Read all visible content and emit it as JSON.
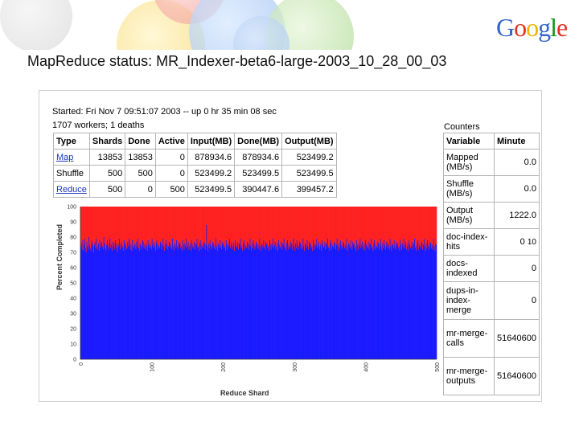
{
  "slide": {
    "title": "MapReduce status: MR_Indexer-beta6-large-2003_10_28_00_03",
    "logo": [
      "G",
      "o",
      "o",
      "g",
      "l",
      "e"
    ],
    "logo_colors": [
      "#3366cc",
      "#dd3322",
      "#f0b400",
      "#3366cc",
      "#109618",
      "#dd3322"
    ]
  },
  "status": {
    "started": "Started: Fri Nov 7 09:51:07 2003 -- up 0 hr 35 min 08 sec",
    "workers": "1707 workers; 1 deaths",
    "headers": [
      "Type",
      "Shards",
      "Done",
      "Active",
      "Input(MB)",
      "Done(MB)",
      "Output(MB)"
    ],
    "rows": [
      {
        "type": "Map",
        "shards": "13853",
        "done": "13853",
        "active": "0",
        "input": "878934.6",
        "done_mb": "878934.6",
        "output": "523499.2"
      },
      {
        "type": "Shuffle",
        "shards": "500",
        "done": "500",
        "active": "0",
        "input": "523499.2",
        "done_mb": "523499.5",
        "output": "523499.5"
      },
      {
        "type": "Reduce",
        "shards": "500",
        "done": "0",
        "active": "500",
        "input": "523499.5",
        "done_mb": "390447.6",
        "output": "399457.2"
      }
    ]
  },
  "counters": {
    "title": "Counters",
    "headers": [
      "Variable",
      "Minute"
    ],
    "rows": [
      {
        "variable": "Mapped (MB/s)",
        "minute": "0.0"
      },
      {
        "variable": "Shuffle (MB/s)",
        "minute": "0.0"
      },
      {
        "variable": "Output (MB/s)",
        "minute": "1222.0"
      },
      {
        "variable": "doc-index-hits",
        "minute": "0",
        "extra": "10"
      },
      {
        "variable": "docs-indexed",
        "minute": "0"
      },
      {
        "variable": "dups-in-index-merge",
        "minute": "0"
      },
      {
        "variable": "mr-merge-calls",
        "minute": "51640600"
      },
      {
        "variable": "mr-merge-outputs",
        "minute": "51640600"
      }
    ]
  },
  "chart_data": {
    "type": "bar",
    "title": "",
    "xlabel": "Reduce Shard",
    "ylabel": "Percent Completed",
    "xlim": [
      0,
      500
    ],
    "ylim": [
      0,
      100
    ],
    "xticks": [
      0,
      100,
      200,
      300,
      400,
      500
    ],
    "yticks": [
      0,
      10,
      20,
      30,
      40,
      50,
      60,
      70,
      80,
      90,
      100
    ],
    "series": [
      {
        "color": "#1a1aff",
        "values_summary": "completed percent per reduce shard, mostly 65-80, peaks up to ~90"
      },
      {
        "color": "#ff2020",
        "values_summary": "remaining to 100"
      }
    ],
    "values": [
      74,
      76,
      72,
      78,
      71,
      75,
      79,
      73,
      70,
      77,
      74,
      72,
      80,
      75,
      73,
      71,
      78,
      76,
      74,
      70,
      75,
      77,
      73,
      79,
      72,
      74,
      76,
      71,
      78,
      73,
      75,
      77,
      74,
      72,
      80,
      76,
      73,
      71,
      75,
      78,
      74,
      72,
      76,
      79,
      73,
      75,
      71,
      77,
      74,
      76,
      72,
      78,
      75,
      73,
      70,
      76,
      74,
      79,
      72,
      75,
      77,
      73,
      74,
      71,
      78,
      76,
      75,
      72,
      73,
      77,
      74,
      79,
      76,
      72,
      75,
      71,
      78,
      74,
      73,
      76,
      75,
      72,
      77,
      74,
      79,
      73,
      71,
      76,
      75,
      72,
      74,
      78,
      77,
      73,
      75,
      72,
      76,
      74,
      71,
      78,
      75,
      73,
      76,
      74,
      72,
      79,
      75,
      73,
      77,
      74,
      71,
      76,
      78,
      72,
      75,
      74,
      73,
      77,
      76,
      72,
      75,
      79,
      74,
      71,
      76,
      73,
      78,
      75,
      72,
      74,
      77,
      76,
      73,
      75,
      72,
      79,
      74,
      71,
      76,
      75,
      73,
      78,
      74,
      72,
      77,
      75,
      76,
      73,
      74,
      71,
      78,
      75,
      72,
      76,
      74,
      79,
      73,
      75,
      77,
      72,
      74,
      76,
      71,
      78,
      75,
      73,
      74,
      77,
      72,
      76,
      75,
      79,
      73,
      74,
      71,
      76,
      78,
      72,
      75,
      74,
      73,
      77,
      76,
      72,
      75,
      88,
      74,
      71,
      76,
      73,
      78,
      75,
      72,
      74,
      77,
      76,
      73,
      75,
      72,
      79,
      74,
      71,
      76,
      75,
      73,
      78,
      74,
      72,
      77,
      75,
      76,
      73,
      74,
      71,
      78,
      75,
      72,
      76,
      74,
      79,
      73,
      75,
      77,
      72,
      74,
      76,
      71,
      78,
      75,
      73,
      74,
      77,
      72,
      76,
      75,
      79,
      73,
      74,
      71,
      76,
      78,
      72,
      75,
      74,
      73,
      77,
      76,
      72,
      75,
      79,
      74,
      71,
      76,
      73,
      78,
      75,
      72,
      74,
      77,
      76,
      73,
      75,
      72,
      79,
      74,
      71,
      76,
      75,
      73,
      78,
      74,
      72,
      77,
      75,
      76,
      73,
      74,
      71,
      78,
      75,
      72,
      76,
      74,
      79,
      73,
      75,
      77,
      72,
      74,
      76,
      71,
      78,
      75,
      73,
      74,
      77,
      72,
      76,
      75,
      79,
      73,
      74,
      71,
      76,
      78,
      72,
      75,
      74,
      73,
      77,
      76,
      72,
      75,
      79,
      74,
      71,
      76,
      73,
      78,
      75,
      72,
      74,
      77,
      76,
      73,
      75,
      72,
      79,
      74,
      71,
      76,
      75,
      73,
      78,
      74,
      72,
      77,
      75,
      76,
      73,
      74,
      71,
      78,
      75,
      72,
      76,
      74,
      79,
      73,
      75,
      77,
      72,
      74,
      76,
      71,
      78,
      75,
      73,
      74,
      77,
      72,
      76,
      75,
      79,
      73,
      74,
      71,
      76,
      78,
      72,
      75,
      74,
      73,
      77,
      76,
      72,
      75,
      79,
      74,
      71,
      76,
      73,
      78,
      75,
      72,
      74,
      77,
      76,
      73,
      75,
      72,
      79,
      74,
      71,
      76,
      75,
      73,
      78,
      74,
      72,
      77,
      75,
      76,
      73,
      74,
      71,
      78,
      75,
      72,
      76,
      74,
      79,
      73,
      75,
      77,
      72,
      74,
      76,
      71,
      78,
      75,
      73,
      74,
      77,
      72,
      76,
      75,
      79,
      73,
      74,
      71,
      76,
      78,
      72,
      75,
      74,
      73,
      77,
      76,
      72,
      75,
      79,
      74,
      71,
      76,
      73,
      78,
      75,
      72,
      74,
      77,
      76,
      73,
      75,
      72,
      79,
      74,
      71,
      76,
      75,
      73,
      78,
      74,
      72,
      77,
      75,
      76,
      73,
      74,
      71,
      78,
      75,
      72,
      76,
      74,
      79,
      73,
      75,
      77,
      72,
      74,
      76,
      71,
      78,
      75,
      73,
      74,
      77,
      72,
      76,
      75,
      79,
      73,
      74,
      71,
      76,
      78,
      72,
      75,
      74,
      73,
      77,
      76,
      72,
      75,
      79,
      74,
      71,
      76,
      73,
      78,
      75,
      72,
      74,
      77,
      76,
      73,
      75,
      72,
      79,
      74,
      71,
      76,
      75
    ]
  }
}
